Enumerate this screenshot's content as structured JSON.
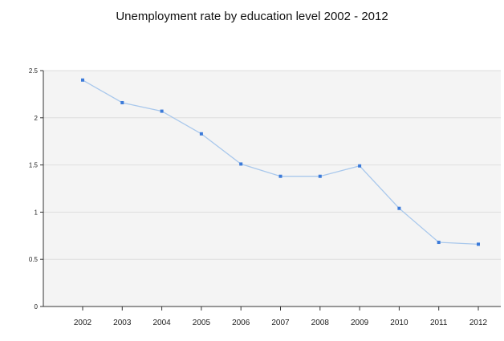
{
  "chart_data": {
    "type": "line",
    "title": "Unemployment rate by education level 2002 - 2012",
    "xlabel": "",
    "ylabel": "",
    "categories": [
      "2002",
      "2003",
      "2004",
      "2005",
      "2006",
      "2007",
      "2008",
      "2009",
      "2010",
      "2011",
      "2012"
    ],
    "series": [
      {
        "values": [
          2.4,
          2.16,
          2.07,
          1.83,
          1.51,
          1.38,
          1.38,
          1.49,
          1.04,
          0.68,
          0.66
        ]
      }
    ],
    "ylim": [
      0,
      2.5
    ],
    "yticks": [
      "0",
      "0.5",
      "1",
      "1.5",
      "2",
      "2.5"
    ],
    "grid": true,
    "legend": "none",
    "colors": {
      "line": "#a9c8ec",
      "marker": "#3b7ad9",
      "plot_background": "#f4f4f4",
      "grid": "#dddddd",
      "axis": "#333333"
    }
  }
}
